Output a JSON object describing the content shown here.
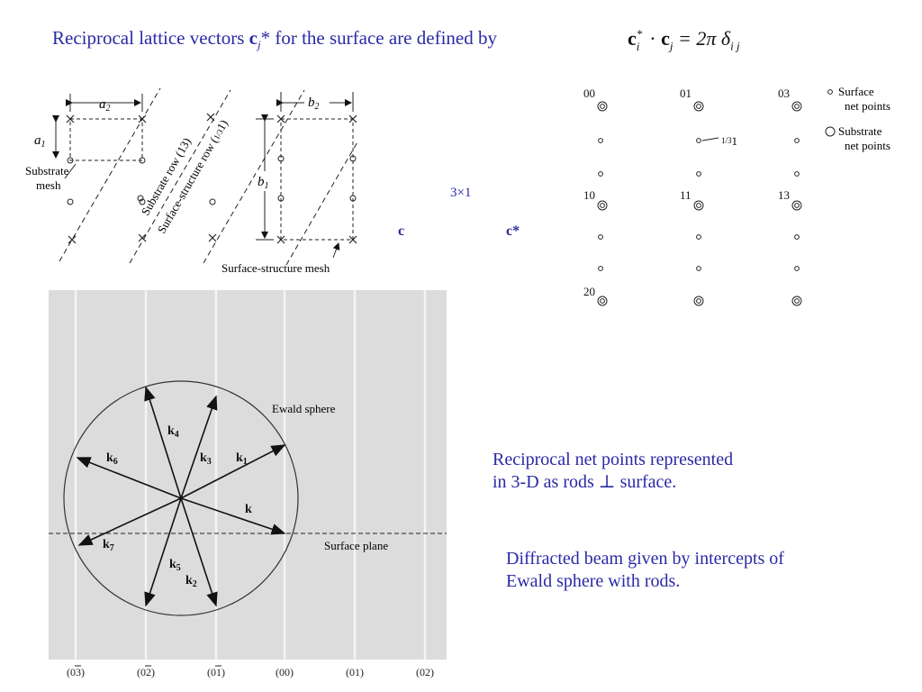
{
  "title": {
    "part1": "Reciprocal lattice vectors ",
    "c": "c",
    "j": "j",
    "part2": "* for the surface are defined by"
  },
  "equation": {
    "ci": "c",
    "star": "*",
    "i": "i",
    "dot": "·",
    "cj": "c",
    "j": "j",
    "eq": "= 2π δ",
    "ij": "i j"
  },
  "labels": {
    "three_by_one": "3×1",
    "c": "c",
    "c_star": "c*"
  },
  "real_space": {
    "a2": "a",
    "a2_sub": "2",
    "a1": "a",
    "a1_sub": "1",
    "b2": "b",
    "b2_sub": "2",
    "b1": "b",
    "b1_sub": "1",
    "substrate_mesh_1": "Substrate",
    "substrate_mesh_2": "mesh",
    "substrate_row": "Substrate row (13)",
    "surface_row": "Surface-structure row (",
    "surface_row_frac": "1/3",
    "surface_row_end": "1)",
    "surface_mesh": "Surface-structure mesh"
  },
  "reciprocal_net": {
    "idx_00": "00",
    "idx_01": "01",
    "idx_03": "03",
    "idx_10": "10",
    "idx_11": "11",
    "idx_13": "13",
    "idx_20": "20",
    "third_label": "1",
    "third_frac": "1/3",
    "legend_surface_1": "Surface",
    "legend_surface_2": "net points",
    "legend_substrate_1": "Substrate",
    "legend_substrate_2": "net points"
  },
  "ewald": {
    "sphere_label": "Ewald sphere",
    "surface_plane": "Surface plane",
    "k": "k",
    "k1": "k",
    "k1_sub": "1",
    "k2": "k",
    "k2_sub": "2",
    "k3": "k",
    "k3_sub": "3",
    "k4": "k",
    "k4_sub": "4",
    "k5": "k",
    "k5_sub": "5",
    "k6": "k",
    "k6_sub": "6",
    "k7": "k",
    "k7_sub": "7",
    "rod_labels": [
      "(03)",
      "(02)",
      "(01)",
      "(00)",
      "(01)",
      "(02)"
    ]
  },
  "notes": {
    "line1": "Reciprocal net points represented",
    "line2": "in 3-D as rods ⊥ surface.",
    "line3": "Diffracted beam given by intercepts of",
    "line4": "Ewald sphere with rods."
  }
}
